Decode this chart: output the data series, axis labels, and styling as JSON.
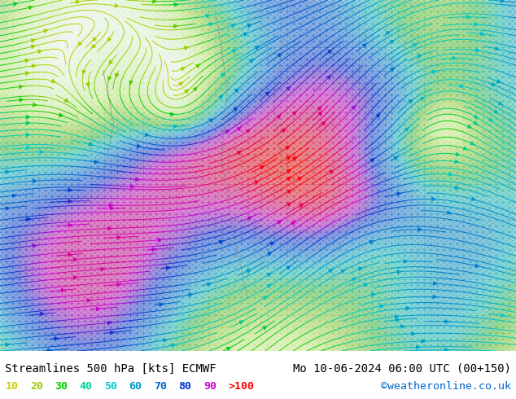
{
  "title_left": "Streamlines 500 hPa [kts] ECMWF",
  "title_right": "Mo 10-06-2024 06:00 UTC (00+150)",
  "credit": "©weatheronline.co.uk",
  "legend_values": [
    "10",
    "20",
    "30",
    "40",
    "50",
    "60",
    "70",
    "80",
    "90",
    ">100"
  ],
  "legend_colors": [
    "#cccc00",
    "#99cc00",
    "#00cc00",
    "#00cc99",
    "#00cccc",
    "#0099cc",
    "#0066cc",
    "#0033cc",
    "#cc00cc",
    "#ff0000"
  ],
  "bg_color": "#ffffff",
  "map_bg": "#e8f5e9",
  "font_family": "monospace",
  "title_fontsize": 10,
  "legend_fontsize": 9.5,
  "fig_width": 6.34,
  "fig_height": 4.9,
  "dpi": 100
}
